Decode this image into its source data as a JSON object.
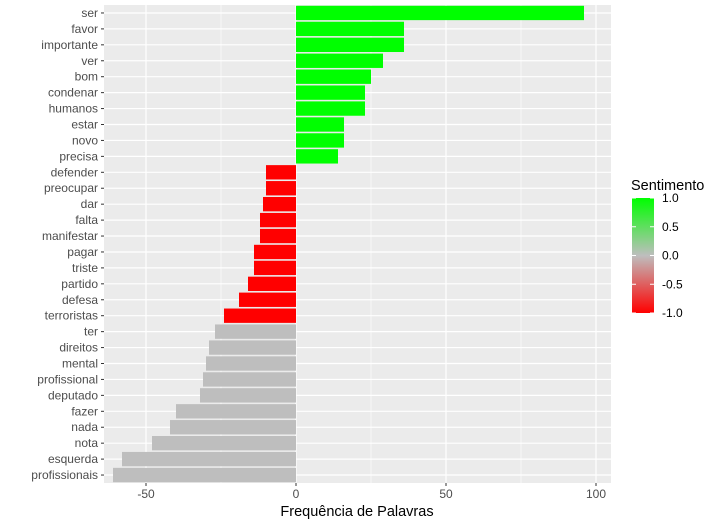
{
  "chart_data": {
    "type": "bar",
    "orientation": "horizontal",
    "xlabel": "Frequência de Palavras",
    "ylabel": "",
    "xlim": [
      -64,
      105
    ],
    "x_ticks": [
      -50,
      0,
      50,
      100
    ],
    "x_tick_labels": [
      "-50",
      "0",
      "50",
      "100"
    ],
    "grid": true,
    "categories": [
      "ser",
      "favor",
      "importante",
      "ver",
      "bom",
      "condenar",
      "humanos",
      "estar",
      "novo",
      "precisa",
      "defender",
      "preocupar",
      "dar",
      "falta",
      "manifestar",
      "pagar",
      "triste",
      "partido",
      "defesa",
      "terroristas",
      "ter",
      "direitos",
      "mental",
      "profissional",
      "deputado",
      "fazer",
      "nada",
      "nota",
      "esquerda",
      "profissionais"
    ],
    "values": [
      96,
      36,
      36,
      29,
      25,
      23,
      23,
      16,
      16,
      14,
      -10,
      -10,
      -11,
      -12,
      -12,
      -14,
      -14,
      -16,
      -19,
      -24,
      -27,
      -29,
      -30,
      -31,
      -32,
      -40,
      -42,
      -48,
      -58,
      -61
    ],
    "sentiment": [
      1,
      1,
      1,
      1,
      1,
      1,
      1,
      1,
      1,
      1,
      -1,
      -1,
      -1,
      -1,
      -1,
      -1,
      -1,
      -1,
      -1,
      -1,
      0,
      0,
      0,
      0,
      0,
      0,
      0,
      0,
      0,
      0
    ],
    "legend": {
      "title": "Sentimento",
      "placement": "right",
      "labels": [
        "1.0",
        "0.5",
        "0.0",
        "-0.5",
        "-1.0"
      ],
      "values": [
        1.0,
        0.5,
        0.0,
        -0.5,
        -1.0
      ]
    },
    "colors": {
      "positive": "#00ff00",
      "neutral": "#bebebe",
      "negative": "#ff0000",
      "panel": "#ebebeb",
      "grid": "#ffffff"
    }
  }
}
